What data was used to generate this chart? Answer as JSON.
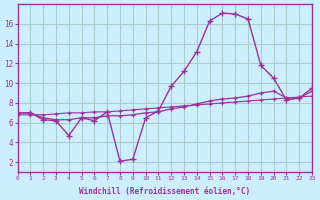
{
  "xlabel": "Windchill (Refroidissement éolien,°C)",
  "bg_color": "#cceeff",
  "grid_color": "#aacccc",
  "line_color": "#993399",
  "series1_x": [
    0,
    1,
    2,
    3,
    4,
    5,
    6,
    7,
    8,
    9,
    10,
    11,
    12,
    13,
    14,
    15,
    16,
    17,
    18,
    19,
    20,
    21,
    22,
    23
  ],
  "series1_y": [
    7.0,
    7.0,
    6.3,
    6.2,
    4.7,
    6.5,
    6.2,
    7.1,
    2.1,
    2.3,
    6.5,
    7.2,
    9.7,
    11.2,
    13.2,
    16.3,
    17.1,
    17.0,
    16.5,
    11.8,
    10.5,
    8.3,
    8.5,
    9.5
  ],
  "series2_x": [
    0,
    1,
    2,
    3,
    4,
    5,
    6,
    7,
    8,
    9,
    10,
    11,
    12,
    13,
    14,
    15,
    16,
    17,
    18,
    19,
    20,
    21,
    22,
    23
  ],
  "series2_y": [
    7.0,
    7.0,
    6.5,
    6.3,
    6.3,
    6.5,
    6.5,
    6.7,
    6.7,
    6.8,
    7.0,
    7.1,
    7.4,
    7.6,
    7.9,
    8.2,
    8.4,
    8.5,
    8.7,
    9.0,
    9.2,
    8.5,
    8.5,
    9.2
  ],
  "series3_x": [
    0,
    1,
    2,
    3,
    4,
    5,
    6,
    7,
    8,
    9,
    10,
    11,
    12,
    13,
    14,
    15,
    16,
    17,
    18,
    19,
    20,
    21,
    22,
    23
  ],
  "series3_y": [
    6.8,
    6.8,
    6.8,
    6.9,
    7.0,
    7.0,
    7.1,
    7.1,
    7.2,
    7.3,
    7.4,
    7.5,
    7.6,
    7.7,
    7.8,
    7.9,
    8.0,
    8.1,
    8.2,
    8.3,
    8.4,
    8.5,
    8.6,
    8.7
  ],
  "xlim": [
    0,
    23
  ],
  "ylim": [
    1,
    18
  ],
  "xticks": [
    0,
    1,
    2,
    3,
    4,
    5,
    6,
    7,
    8,
    9,
    10,
    11,
    12,
    13,
    14,
    15,
    16,
    17,
    18,
    19,
    20,
    21,
    22,
    23
  ],
  "yticks": [
    2,
    4,
    6,
    8,
    10,
    12,
    14,
    16
  ]
}
